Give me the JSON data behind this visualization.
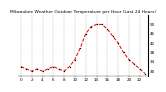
{
  "title": "Milwaukee Weather Outdoor Temperature per Hour (Last 24 Hours)",
  "hours": [
    0,
    1,
    2,
    3,
    4,
    5,
    6,
    7,
    8,
    9,
    10,
    11,
    12,
    13,
    14,
    15,
    16,
    17,
    18,
    19,
    20,
    21,
    22,
    23
  ],
  "temps": [
    32,
    31,
    30,
    31,
    30,
    31,
    32,
    31,
    30,
    32,
    35,
    40,
    46,
    49,
    50,
    50,
    48,
    45,
    42,
    38,
    35,
    33,
    31,
    29
  ],
  "line_color": "#dd0000",
  "marker_color": "#000000",
  "bg_color": "#ffffff",
  "plot_bg": "#ffffff",
  "grid_color": "#888888",
  "ylim": [
    28,
    54
  ],
  "yticks": [
    30,
    34,
    38,
    42,
    46,
    50
  ],
  "xticks": [
    0,
    2,
    4,
    6,
    8,
    10,
    12,
    14,
    16,
    18,
    20,
    22
  ],
  "xlabel_fontsize": 3.0,
  "ylabel_fontsize": 3.0,
  "title_fontsize": 3.2
}
